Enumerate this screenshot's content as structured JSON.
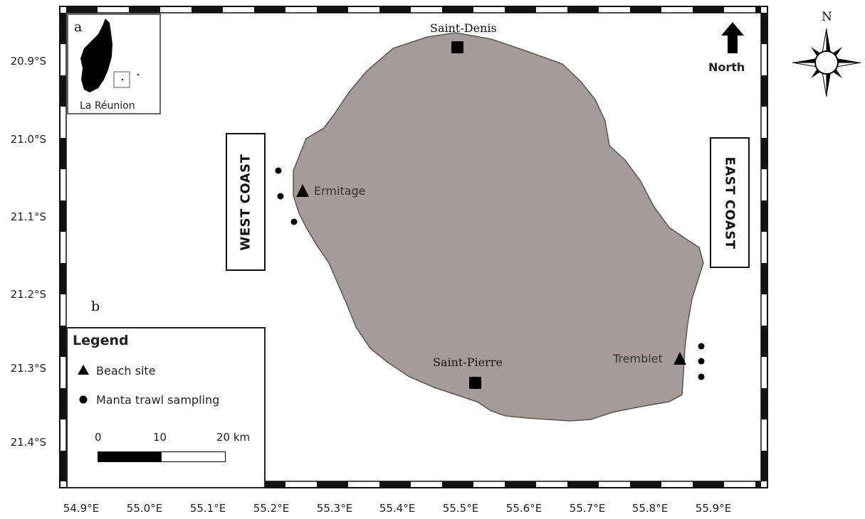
{
  "map": {
    "panel_a_letter": "a",
    "panel_b_letter": "b",
    "inset_label": "La Réunion",
    "latitude_labels": [
      "20.9°S",
      "21.0°S",
      "21.1°S",
      "21.2°S",
      "21.3°S",
      "21.4°S"
    ],
    "longitude_labels": [
      "54.9°E",
      "55.0°E",
      "55.1°E",
      "55.2°E",
      "55.3°E",
      "55.4°E",
      "55.5°E",
      "55.6°E",
      "55.7°E",
      "55.8°E",
      "55.9°E"
    ],
    "places": {
      "saint_denis": "Saint-Denis",
      "saint_pierre": "Saint-Pierre"
    },
    "beach_sites": {
      "ermitage": "Ermitage",
      "tremblet": "Tremblet"
    },
    "coasts": {
      "west": "WEST COAST",
      "east": "EAST COAST"
    },
    "north_arrow_label": "North",
    "compass_label": "N",
    "colors": {
      "island_fill": "#a59c9a",
      "frame": "#111111",
      "ocean": "#ffffff"
    }
  },
  "legend": {
    "title": "Legend",
    "items": [
      {
        "symbol": "triangle",
        "label": "Beach site"
      },
      {
        "symbol": "circle",
        "label": "Manta trawl sampling"
      }
    ],
    "scale_labels": [
      "0",
      "10",
      "20 km"
    ]
  }
}
